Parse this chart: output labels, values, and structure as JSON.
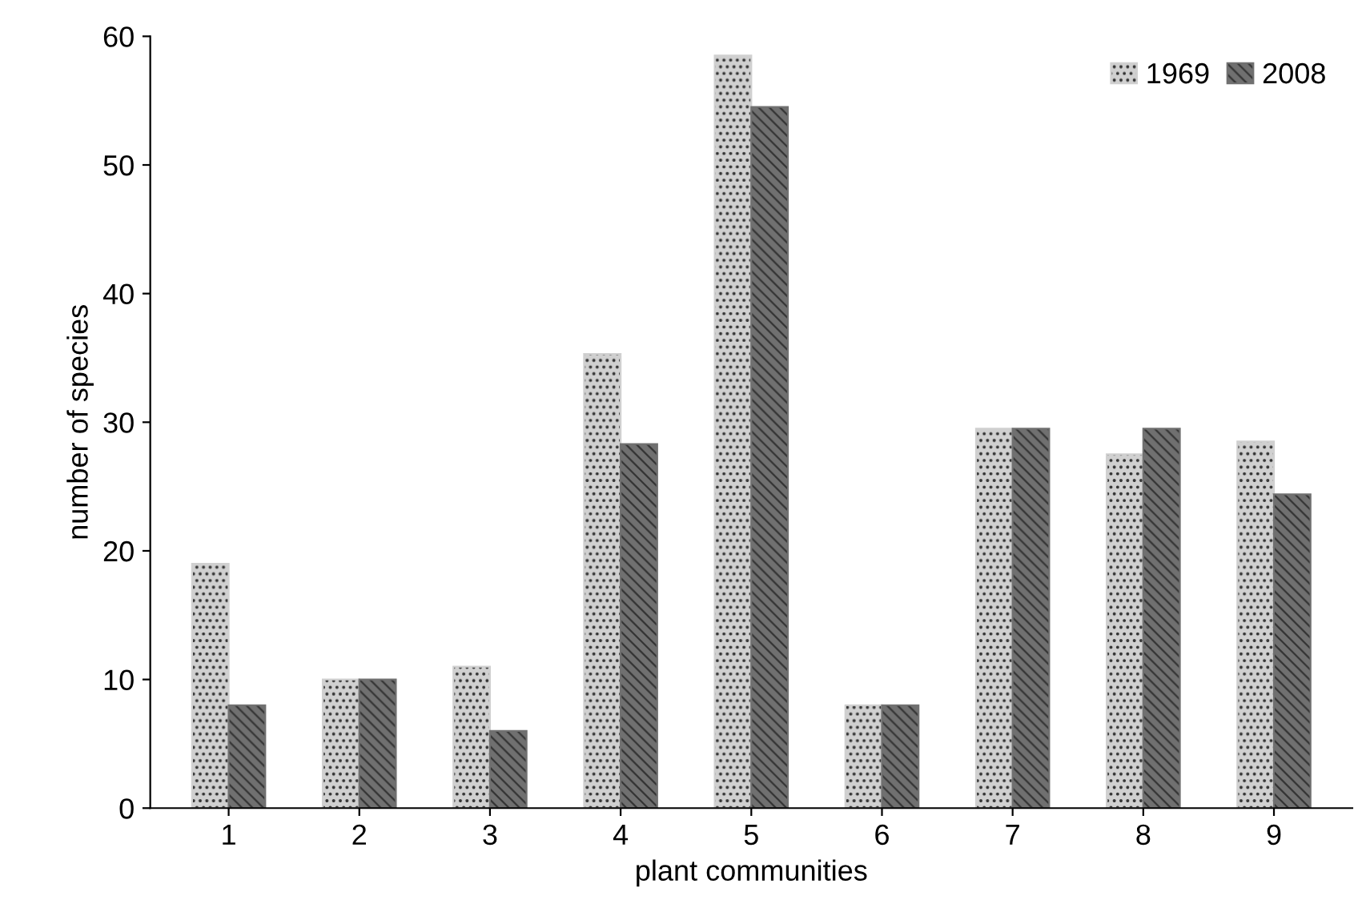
{
  "chart_data": {
    "type": "bar",
    "xlabel": "plant communities",
    "ylabel": "number of species",
    "categories": [
      "1",
      "2",
      "3",
      "4",
      "5",
      "6",
      "7",
      "8",
      "9"
    ],
    "series": [
      {
        "name": "1969",
        "color": "#d0d0d0",
        "values": [
          19,
          10,
          11,
          35.3,
          58.5,
          8,
          29.5,
          27.5,
          28.5
        ]
      },
      {
        "name": "2008",
        "color": "#707070",
        "values": [
          8,
          10,
          6,
          28.3,
          54.5,
          8,
          29.5,
          29.5,
          24.4
        ]
      }
    ],
    "ylim": [
      0,
      60
    ],
    "yticks": [
      0,
      10,
      20,
      30,
      40,
      50,
      60
    ],
    "grid": false,
    "legend": "top right"
  }
}
